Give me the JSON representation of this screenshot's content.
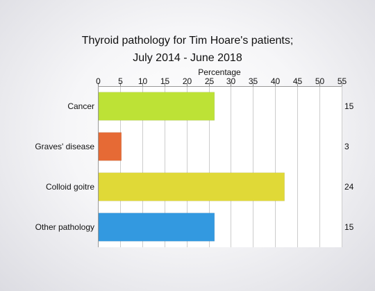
{
  "chart_data": {
    "type": "bar",
    "orientation": "horizontal",
    "title_line1": "Thyroid pathology for Tim Hoare's patients;",
    "title_line2": "July 2014 - June 2018",
    "xlabel": "Percentage",
    "ylabel": "",
    "xlim": [
      0,
      55
    ],
    "xticks": [
      0,
      5,
      10,
      15,
      20,
      25,
      30,
      35,
      40,
      45,
      50,
      55
    ],
    "grid": true,
    "categories": [
      "Cancer",
      "Graves' disease",
      "Colloid goitre",
      "Other pathology"
    ],
    "values": [
      26.3,
      5.3,
      42.1,
      26.3
    ],
    "counts": [
      "15",
      "3",
      "24",
      "15"
    ],
    "colors": [
      "#bde236",
      "#e66a35",
      "#e0d937",
      "#3399e0"
    ]
  }
}
